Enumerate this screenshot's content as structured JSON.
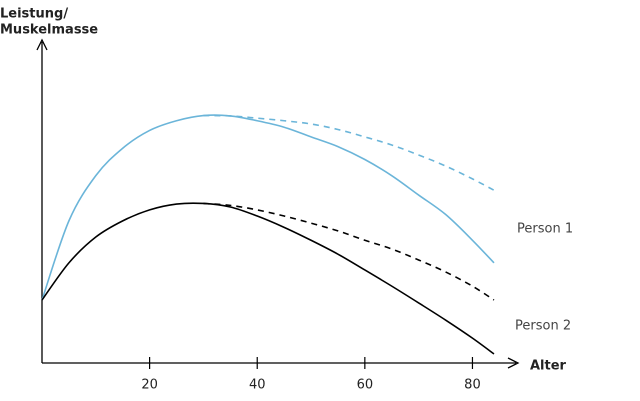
{
  "chart_data": {
    "type": "line",
    "ylabel": [
      "Leistung/",
      "Muskelmasse"
    ],
    "xlabel": "Alter",
    "x": [
      0,
      5,
      10,
      15,
      20,
      25,
      30,
      35,
      40,
      45,
      50,
      55,
      60,
      65,
      70,
      75,
      80,
      84
    ],
    "xlim": [
      0,
      88
    ],
    "xticks": [
      20,
      40,
      60,
      80
    ],
    "ylim": [
      0,
      100
    ],
    "series": [
      {
        "name": "Person 1",
        "color": "#6bb5d9",
        "dashed": false,
        "values": [
          19.5,
          44,
          58,
          66.5,
          72,
          75,
          76.6,
          76.5,
          75,
          73,
          70,
          67,
          63,
          58,
          52,
          46,
          38,
          31
        ]
      },
      {
        "color": "#6bb5d9",
        "dashed": true,
        "values": [
          null,
          null,
          null,
          null,
          null,
          null,
          76.6,
          76.5,
          75.8,
          75,
          74,
          72.3,
          70,
          67.5,
          64.4,
          61,
          57,
          53.5
        ]
      },
      {
        "name": "Person 2",
        "color": "#000000",
        "dashed": false,
        "values": [
          19.5,
          31,
          39,
          44,
          47.4,
          49.2,
          49.4,
          48.3,
          45.5,
          42,
          38,
          33.7,
          28.8,
          23.8,
          18.6,
          13.3,
          7.7,
          2.8
        ]
      },
      {
        "color": "#000000",
        "dashed": true,
        "values": [
          null,
          null,
          null,
          null,
          null,
          null,
          49.4,
          48.8,
          47.4,
          45.5,
          43.3,
          40.9,
          38,
          35.3,
          31.9,
          28.2,
          23.8,
          19.5
        ]
      }
    ]
  }
}
